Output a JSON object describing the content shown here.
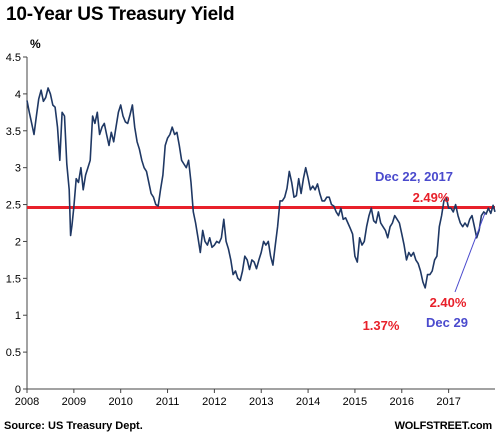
{
  "chart_data": {
    "type": "line",
    "title": "10-Year US Treasury Yield",
    "ylabel": "%",
    "ylim": [
      0,
      4.5
    ],
    "yticks": [
      0,
      0.5,
      1,
      1.5,
      2,
      2.5,
      3,
      3.5,
      4,
      4.5
    ],
    "ytick_labels": [
      "0",
      "0.5",
      "1",
      "1.5",
      "2",
      "2.5",
      "3",
      "3.5",
      "4",
      "4.5"
    ],
    "xlim": [
      2008.0,
      2017.99
    ],
    "xticks": [
      2008,
      2009,
      2010,
      2011,
      2012,
      2013,
      2014,
      2015,
      2016,
      2017
    ],
    "xtick_labels": [
      "2008",
      "2009",
      "2010",
      "2011",
      "2012",
      "2013",
      "2014",
      "2015",
      "2016",
      "2017"
    ],
    "grid": false,
    "source": "Source: US Treasury Dept.",
    "brand": "WOLFSTREET.com",
    "colors": {
      "line": "#1f3864",
      "reference": "#e8202a",
      "annotation_blue": "#4a4acd",
      "annotation_red": "#e8202a"
    },
    "series": [
      {
        "x": [
          2008.0,
          2008.05,
          2008.1,
          2008.15,
          2008.2,
          2008.25,
          2008.3,
          2008.35,
          2008.4,
          2008.45,
          2008.5,
          2008.55,
          2008.6,
          2008.65,
          2008.7,
          2008.75,
          2008.8,
          2008.85,
          2008.9,
          2008.93,
          2008.96,
          2009.0,
          2009.05,
          2009.1,
          2009.15,
          2009.2,
          2009.25,
          2009.3,
          2009.35,
          2009.4,
          2009.45,
          2009.5,
          2009.55,
          2009.6,
          2009.65,
          2009.7,
          2009.75,
          2009.8,
          2009.85,
          2009.9,
          2009.95,
          2010.0,
          2010.05,
          2010.1,
          2010.15,
          2010.2,
          2010.25,
          2010.3,
          2010.35,
          2010.4,
          2010.45,
          2010.5,
          2010.55,
          2010.6,
          2010.65,
          2010.7,
          2010.75,
          2010.8,
          2010.85,
          2010.9,
          2010.95,
          2011.0,
          2011.05,
          2011.1,
          2011.15,
          2011.2,
          2011.25,
          2011.3,
          2011.35,
          2011.4,
          2011.45,
          2011.5,
          2011.55,
          2011.6,
          2011.65,
          2011.7,
          2011.75,
          2011.8,
          2011.85,
          2011.9,
          2011.95,
          2012.0,
          2012.05,
          2012.1,
          2012.15,
          2012.2,
          2012.25,
          2012.3,
          2012.35,
          2012.4,
          2012.45,
          2012.5,
          2012.55,
          2012.6,
          2012.65,
          2012.7,
          2012.75,
          2012.8,
          2012.85,
          2012.9,
          2012.95,
          2013.0,
          2013.05,
          2013.1,
          2013.15,
          2013.2,
          2013.25,
          2013.3,
          2013.35,
          2013.4,
          2013.45,
          2013.5,
          2013.55,
          2013.6,
          2013.65,
          2013.7,
          2013.75,
          2013.8,
          2013.85,
          2013.9,
          2013.95,
          2014.0,
          2014.05,
          2014.1,
          2014.15,
          2014.2,
          2014.25,
          2014.3,
          2014.35,
          2014.4,
          2014.45,
          2014.5,
          2014.55,
          2014.6,
          2014.65,
          2014.7,
          2014.75,
          2014.8,
          2014.85,
          2014.9,
          2014.95,
          2015.0,
          2015.05,
          2015.1,
          2015.15,
          2015.2,
          2015.25,
          2015.3,
          2015.35,
          2015.4,
          2015.45,
          2015.5,
          2015.55,
          2015.6,
          2015.65,
          2015.7,
          2015.75,
          2015.8,
          2015.85,
          2015.9,
          2015.95,
          2016.0,
          2016.05,
          2016.1,
          2016.15,
          2016.2,
          2016.25,
          2016.3,
          2016.35,
          2016.4,
          2016.45,
          2016.5,
          2016.55,
          2016.6,
          2016.65,
          2016.7,
          2016.75,
          2016.8,
          2016.85,
          2016.9,
          2016.95,
          2017.0,
          2017.05,
          2017.1,
          2017.15,
          2017.2,
          2017.25,
          2017.3,
          2017.35,
          2017.4,
          2017.45,
          2017.5,
          2017.55,
          2017.6,
          2017.65,
          2017.7,
          2017.75,
          2017.8,
          2017.85,
          2017.9,
          2017.95,
          2017.99
        ],
        "y": [
          3.91,
          3.75,
          3.6,
          3.45,
          3.7,
          3.93,
          4.05,
          3.9,
          3.95,
          4.08,
          4.0,
          3.85,
          3.82,
          3.55,
          3.1,
          3.75,
          3.7,
          3.05,
          2.7,
          2.08,
          2.22,
          2.46,
          2.85,
          2.8,
          3.0,
          2.7,
          2.9,
          3.0,
          3.1,
          3.7,
          3.6,
          3.75,
          3.45,
          3.55,
          3.6,
          3.45,
          3.3,
          3.48,
          3.35,
          3.55,
          3.75,
          3.85,
          3.7,
          3.62,
          3.6,
          3.72,
          3.85,
          3.55,
          3.35,
          3.25,
          3.1,
          3.0,
          2.95,
          2.8,
          2.65,
          2.6,
          2.5,
          2.48,
          2.7,
          2.9,
          3.3,
          3.4,
          3.45,
          3.55,
          3.45,
          3.48,
          3.3,
          3.1,
          3.05,
          3.0,
          3.1,
          2.8,
          2.4,
          2.25,
          2.05,
          1.85,
          2.15,
          2.0,
          1.95,
          2.05,
          1.92,
          1.95,
          2.0,
          1.98,
          2.05,
          2.3,
          2.0,
          1.9,
          1.75,
          1.55,
          1.6,
          1.5,
          1.47,
          1.6,
          1.8,
          1.75,
          1.62,
          1.75,
          1.72,
          1.63,
          1.75,
          1.85,
          2.0,
          1.95,
          2.0,
          1.8,
          1.68,
          1.95,
          2.2,
          2.55,
          2.55,
          2.6,
          2.72,
          2.95,
          2.8,
          2.6,
          2.62,
          2.85,
          2.65,
          2.85,
          3.0,
          2.86,
          2.7,
          2.75,
          2.7,
          2.78,
          2.65,
          2.55,
          2.55,
          2.6,
          2.6,
          2.5,
          2.48,
          2.4,
          2.35,
          2.45,
          2.3,
          2.32,
          2.25,
          2.18,
          2.1,
          1.8,
          1.72,
          2.05,
          1.95,
          2.0,
          2.2,
          2.35,
          2.45,
          2.28,
          2.25,
          2.4,
          2.25,
          2.2,
          2.15,
          2.05,
          2.2,
          2.25,
          2.35,
          2.3,
          2.25,
          2.1,
          1.95,
          1.75,
          1.85,
          1.8,
          1.85,
          1.75,
          1.7,
          1.6,
          1.45,
          1.37,
          1.55,
          1.55,
          1.6,
          1.75,
          1.8,
          2.2,
          2.35,
          2.55,
          2.6,
          2.45,
          2.45,
          2.4,
          2.5,
          2.35,
          2.25,
          2.2,
          2.25,
          2.2,
          2.3,
          2.35,
          2.2,
          2.05,
          2.15,
          2.35,
          2.4,
          2.37,
          2.45,
          2.38,
          2.49,
          2.4
        ]
      }
    ],
    "reference_line": {
      "y": 2.46
    },
    "annotations": {
      "peak_date": "Dec 22, 2017",
      "peak_value": "2.49%",
      "end_value": "2.40%",
      "end_date": "Dec 29",
      "low_value": "1.37%"
    }
  }
}
